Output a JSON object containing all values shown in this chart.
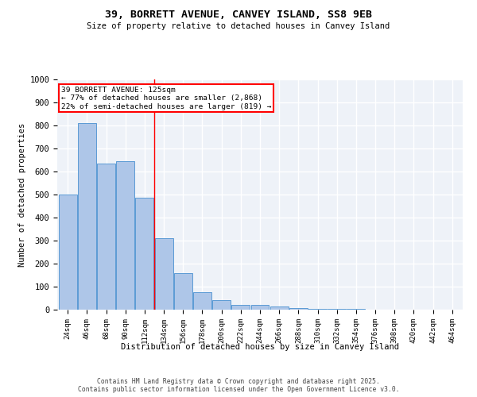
{
  "title": "39, BORRETT AVENUE, CANVEY ISLAND, SS8 9EB",
  "subtitle": "Size of property relative to detached houses in Canvey Island",
  "xlabel": "Distribution of detached houses by size in Canvey Island",
  "ylabel": "Number of detached properties",
  "categories": [
    "24sqm",
    "46sqm",
    "68sqm",
    "90sqm",
    "112sqm",
    "134sqm",
    "156sqm",
    "178sqm",
    "200sqm",
    "222sqm",
    "244sqm",
    "266sqm",
    "288sqm",
    "310sqm",
    "332sqm",
    "354sqm",
    "376sqm",
    "398sqm",
    "420sqm",
    "442sqm",
    "464sqm"
  ],
  "values": [
    500,
    810,
    635,
    645,
    485,
    310,
    160,
    75,
    40,
    20,
    20,
    13,
    7,
    5,
    3,
    2,
    1,
    1,
    0,
    0,
    1
  ],
  "bar_color": "#aec6e8",
  "bar_edge_color": "#5b9bd5",
  "annotation_line0": "39 BORRETT AVENUE: 125sqm",
  "annotation_line1": "← 77% of detached houses are smaller (2,868)",
  "annotation_line2": "22% of semi-detached houses are larger (819) →",
  "annotation_box_color": "white",
  "annotation_box_edge": "red",
  "vline_color": "red",
  "vline_x": 4.5,
  "ylim": [
    0,
    1000
  ],
  "yticks": [
    0,
    100,
    200,
    300,
    400,
    500,
    600,
    700,
    800,
    900,
    1000
  ],
  "background_color": "#eef2f8",
  "grid_color": "white",
  "footer_line1": "Contains HM Land Registry data © Crown copyright and database right 2025.",
  "footer_line2": "Contains public sector information licensed under the Open Government Licence v3.0."
}
